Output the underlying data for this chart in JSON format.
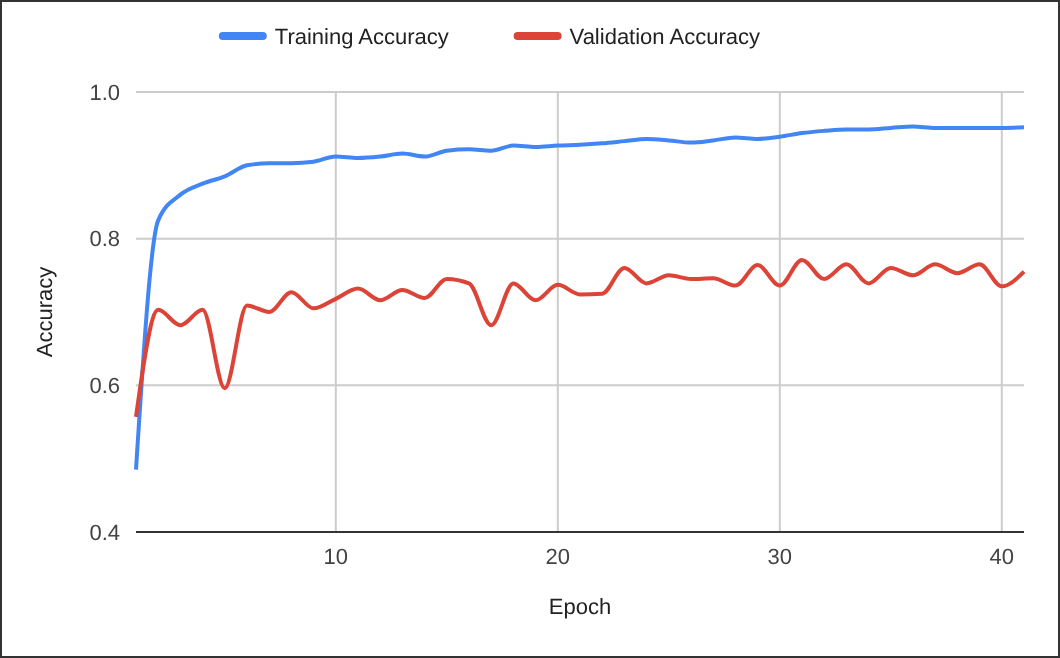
{
  "chart_data": {
    "type": "line",
    "xlabel": "Epoch",
    "ylabel": "Accuracy",
    "x": [
      1,
      2,
      3,
      4,
      5,
      6,
      7,
      8,
      9,
      10,
      11,
      12,
      13,
      14,
      15,
      16,
      17,
      18,
      19,
      20,
      21,
      22,
      23,
      24,
      25,
      26,
      27,
      28,
      29,
      30,
      31,
      32,
      33,
      34,
      35,
      36,
      37,
      38,
      39,
      40,
      41
    ],
    "series": [
      {
        "name": "Training Accuracy",
        "color": "#4285f4",
        "values": [
          0.485,
          0.825,
          0.86,
          0.875,
          0.885,
          0.9,
          0.903,
          0.903,
          0.905,
          0.912,
          0.91,
          0.912,
          0.916,
          0.912,
          0.92,
          0.922,
          0.92,
          0.927,
          0.925,
          0.927,
          0.928,
          0.93,
          0.933,
          0.936,
          0.934,
          0.931,
          0.934,
          0.938,
          0.936,
          0.939,
          0.944,
          0.947,
          0.949,
          0.949,
          0.951,
          0.953,
          0.951,
          0.951,
          0.951,
          0.951,
          0.952
        ]
      },
      {
        "name": "Validation Accuracy",
        "color": "#db4437",
        "values": [
          0.557,
          0.703,
          0.682,
          0.703,
          0.596,
          0.709,
          0.7,
          0.727,
          0.705,
          0.718,
          0.732,
          0.716,
          0.73,
          0.719,
          0.745,
          0.739,
          0.682,
          0.739,
          0.716,
          0.737,
          0.724,
          0.725,
          0.76,
          0.739,
          0.75,
          0.745,
          0.746,
          0.736,
          0.764,
          0.736,
          0.771,
          0.745,
          0.765,
          0.739,
          0.76,
          0.75,
          0.765,
          0.753,
          0.765,
          0.735,
          0.755
        ]
      }
    ],
    "xlim": [
      1,
      41
    ],
    "xticks": [
      10,
      20,
      30,
      40
    ],
    "ylim": [
      0.4,
      1.0
    ],
    "yticks": [
      {
        "value": 0.4,
        "label": "0.4"
      },
      {
        "value": 0.6,
        "label": "0.6"
      },
      {
        "value": 0.8,
        "label": "0.8"
      },
      {
        "value": 1.0,
        "label": "1.0"
      }
    ],
    "grid": true,
    "legend": "top",
    "marker": "none",
    "line_style": "solid"
  }
}
